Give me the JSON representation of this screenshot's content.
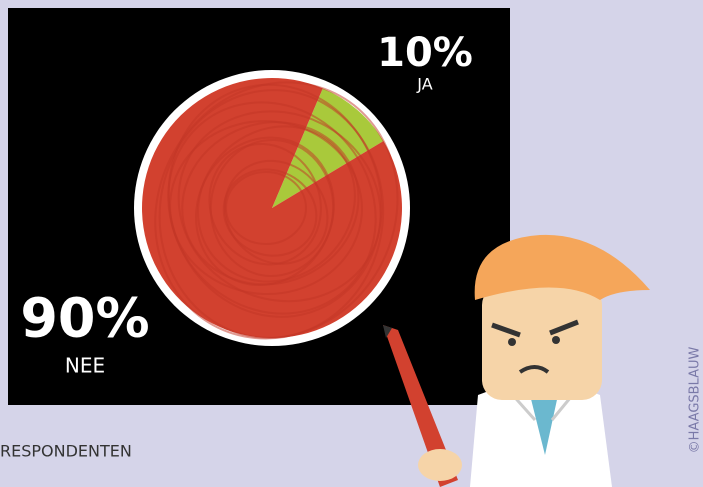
{
  "chart_data": {
    "type": "pie",
    "categories": [
      "JA",
      "NEE"
    ],
    "values": [
      10,
      90
    ],
    "value_labels": [
      "10%",
      "90%"
    ],
    "colors": [
      "#a9c93b",
      "#d2412f"
    ],
    "annotations": [
      "RESPONDENTEN",
      "©HAAGSBLAUW"
    ]
  }
}
